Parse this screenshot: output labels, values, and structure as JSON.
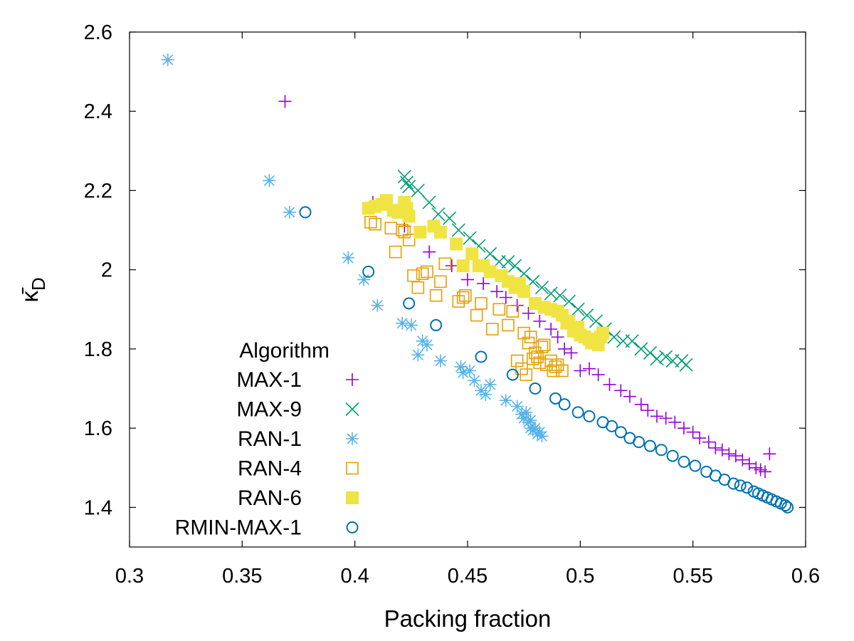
{
  "chart_data": {
    "type": "scatter",
    "title": "",
    "xlabel": "Packing fraction",
    "ylabel_base": "κ̄",
    "ylabel_sub": "D",
    "xlim": [
      0.3,
      0.6
    ],
    "ylim": [
      1.3,
      2.6
    ],
    "xticks": [
      0.3,
      0.35,
      0.4,
      0.45,
      0.5,
      0.55,
      0.6
    ],
    "xtick_labels": [
      "0.3",
      "0.35",
      "0.4",
      "0.45",
      "0.5",
      "0.55",
      "0.6"
    ],
    "yticks": [
      1.4,
      1.6,
      1.8,
      2.0,
      2.2,
      2.4,
      2.6
    ],
    "ytick_labels": [
      "1.4",
      "1.6",
      "1.8",
      "2",
      "2.2",
      "2.4",
      "2.6"
    ],
    "legend_title": "Algorithm",
    "legend_position": "bottom-left",
    "series": [
      {
        "name": "MAX-1",
        "marker": "plus",
        "color": "#9400d3",
        "x": [
          0.369,
          0.408,
          0.422,
          0.433,
          0.443,
          0.45,
          0.457,
          0.463,
          0.467,
          0.472,
          0.477,
          0.482,
          0.487,
          0.49,
          0.493,
          0.496,
          0.5,
          0.504,
          0.508,
          0.513,
          0.518,
          0.522,
          0.527,
          0.53,
          0.534,
          0.538,
          0.542,
          0.546,
          0.55,
          0.553,
          0.557,
          0.56,
          0.563,
          0.566,
          0.569,
          0.572,
          0.575,
          0.578,
          0.58,
          0.582,
          0.584
        ],
        "y": [
          2.425,
          2.17,
          2.11,
          2.045,
          2.01,
          1.975,
          1.965,
          1.945,
          1.93,
          1.91,
          1.89,
          1.87,
          1.85,
          1.83,
          1.8,
          1.79,
          1.745,
          1.75,
          1.735,
          1.71,
          1.695,
          1.68,
          1.66,
          1.645,
          1.63,
          1.625,
          1.615,
          1.6,
          1.59,
          1.575,
          1.565,
          1.55,
          1.545,
          1.535,
          1.53,
          1.52,
          1.51,
          1.5,
          1.495,
          1.49,
          1.535
        ]
      },
      {
        "name": "MAX-9",
        "marker": "cross",
        "color": "#009e73",
        "x": [
          0.422,
          0.423,
          0.424,
          0.428,
          0.433,
          0.437,
          0.442,
          0.446,
          0.451,
          0.455,
          0.46,
          0.464,
          0.468,
          0.471,
          0.475,
          0.479,
          0.483,
          0.487,
          0.491,
          0.495,
          0.499,
          0.503,
          0.507,
          0.511,
          0.515,
          0.519,
          0.523,
          0.527,
          0.531,
          0.534,
          0.538,
          0.541,
          0.545,
          0.547
        ],
        "y": [
          2.235,
          2.22,
          2.21,
          2.2,
          2.17,
          2.14,
          2.13,
          2.1,
          2.08,
          2.06,
          2.04,
          2.02,
          2.02,
          2.01,
          1.99,
          1.97,
          1.955,
          1.94,
          1.935,
          1.92,
          1.9,
          1.885,
          1.87,
          1.85,
          1.83,
          1.82,
          1.82,
          1.8,
          1.79,
          1.775,
          1.78,
          1.77,
          1.77,
          1.76
        ]
      },
      {
        "name": "RAN-1",
        "marker": "star",
        "color": "#56b4e9",
        "x": [
          0.317,
          0.362,
          0.371,
          0.397,
          0.404,
          0.41,
          0.421,
          0.425,
          0.428,
          0.43,
          0.432,
          0.438,
          0.447,
          0.448,
          0.451,
          0.453,
          0.456,
          0.458,
          0.46,
          0.467,
          0.472,
          0.474,
          0.475,
          0.476,
          0.477,
          0.478,
          0.478,
          0.479,
          0.48,
          0.481,
          0.482,
          0.483
        ],
        "y": [
          2.53,
          2.225,
          2.145,
          2.03,
          1.975,
          1.91,
          1.865,
          1.86,
          1.785,
          1.82,
          1.81,
          1.77,
          1.755,
          1.74,
          1.745,
          1.72,
          1.695,
          1.685,
          1.71,
          1.67,
          1.655,
          1.635,
          1.625,
          1.64,
          1.615,
          1.6,
          1.62,
          1.595,
          1.6,
          1.585,
          1.59,
          1.58
        ]
      },
      {
        "name": "RAN-4",
        "marker": "square-open",
        "color": "#e69f00",
        "x": [
          0.407,
          0.409,
          0.416,
          0.418,
          0.421,
          0.422,
          0.424,
          0.426,
          0.428,
          0.43,
          0.432,
          0.436,
          0.438,
          0.44,
          0.446,
          0.448,
          0.449,
          0.454,
          0.456,
          0.461,
          0.464,
          0.468,
          0.47,
          0.472,
          0.474,
          0.475,
          0.476,
          0.477,
          0.478,
          0.479,
          0.48,
          0.481,
          0.482,
          0.483,
          0.484,
          0.485,
          0.487,
          0.488,
          0.489,
          0.49,
          0.492
        ],
        "y": [
          2.12,
          2.115,
          2.105,
          2.045,
          2.1,
          2.095,
          2.075,
          1.985,
          1.955,
          1.99,
          1.995,
          1.935,
          1.97,
          2.015,
          1.92,
          1.93,
          1.935,
          1.885,
          1.915,
          1.85,
          1.9,
          1.86,
          1.895,
          1.77,
          1.75,
          1.84,
          1.735,
          1.815,
          1.83,
          1.775,
          1.79,
          1.78,
          1.765,
          1.805,
          1.81,
          1.76,
          1.77,
          1.745,
          1.755,
          1.76,
          1.745
        ]
      },
      {
        "name": "RAN-6",
        "marker": "square-filled",
        "color": "#f0e442",
        "x": [
          0.406,
          0.409,
          0.412,
          0.414,
          0.417,
          0.419,
          0.422,
          0.423,
          0.424,
          0.429,
          0.435,
          0.438,
          0.445,
          0.448,
          0.452,
          0.455,
          0.457,
          0.46,
          0.465,
          0.468,
          0.471,
          0.473,
          0.475,
          0.48,
          0.484,
          0.487,
          0.49,
          0.492,
          0.494,
          0.495,
          0.497,
          0.499,
          0.5,
          0.502,
          0.504,
          0.505,
          0.506,
          0.508,
          0.509,
          0.51
        ],
        "y": [
          2.155,
          2.16,
          2.165,
          2.175,
          2.15,
          2.145,
          2.17,
          2.155,
          2.135,
          2.095,
          2.11,
          2.095,
          2.065,
          2.01,
          2.04,
          2.01,
          2.01,
          1.995,
          1.985,
          1.97,
          1.955,
          1.965,
          1.945,
          1.915,
          1.905,
          1.9,
          1.895,
          1.885,
          1.865,
          1.87,
          1.845,
          1.855,
          1.835,
          1.83,
          1.825,
          1.815,
          1.825,
          1.81,
          1.83,
          1.84
        ]
      },
      {
        "name": "RMIN-MAX-1",
        "marker": "circle-open",
        "color": "#0072b2",
        "x": [
          0.378,
          0.406,
          0.424,
          0.436,
          0.456,
          0.47,
          0.48,
          0.489,
          0.493,
          0.499,
          0.504,
          0.51,
          0.514,
          0.518,
          0.522,
          0.526,
          0.531,
          0.536,
          0.541,
          0.546,
          0.551,
          0.556,
          0.56,
          0.564,
          0.568,
          0.571,
          0.574,
          0.577,
          0.579,
          0.581,
          0.583,
          0.585,
          0.587,
          0.589,
          0.591,
          0.592
        ],
        "y": [
          2.145,
          1.995,
          1.915,
          1.86,
          1.78,
          1.735,
          1.7,
          1.675,
          1.66,
          1.64,
          1.63,
          1.615,
          1.605,
          1.59,
          1.575,
          1.565,
          1.555,
          1.545,
          1.53,
          1.515,
          1.505,
          1.49,
          1.48,
          1.47,
          1.46,
          1.455,
          1.45,
          1.44,
          1.435,
          1.43,
          1.425,
          1.42,
          1.415,
          1.41,
          1.405,
          1.4
        ]
      }
    ]
  }
}
